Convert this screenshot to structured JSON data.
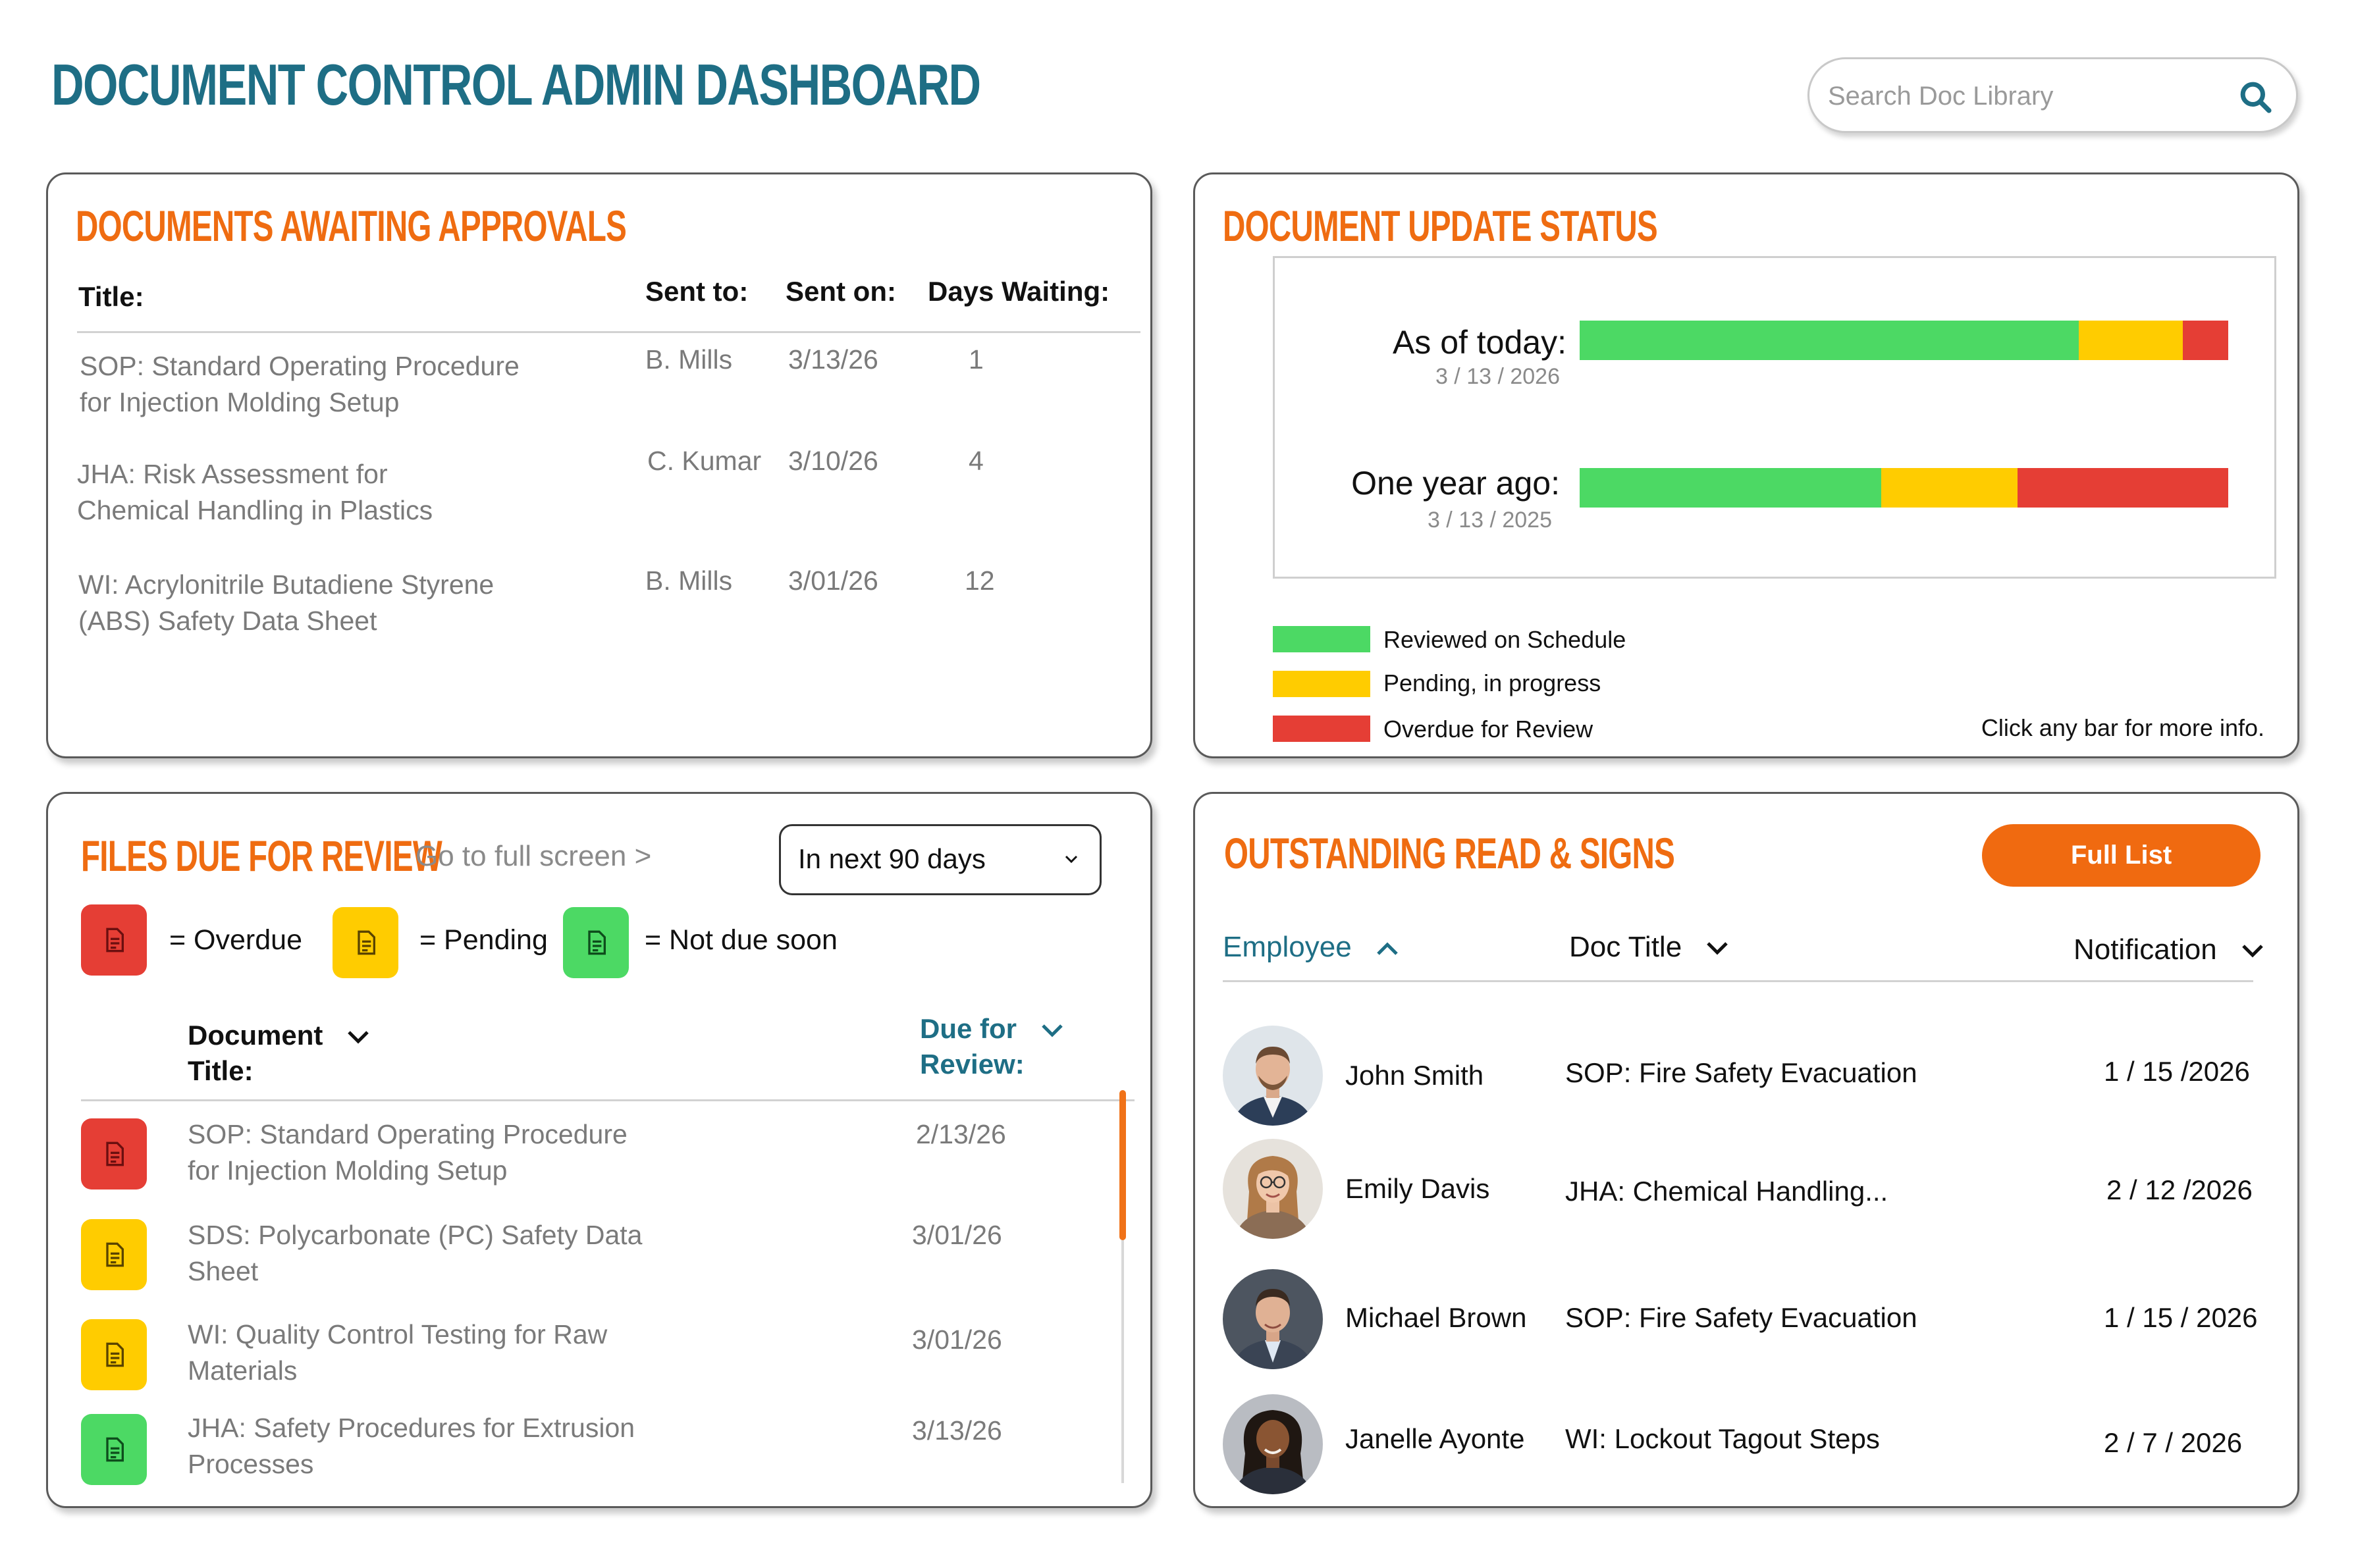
{
  "header": {
    "title": "DOCUMENT CONTROL ADMIN DASHBOARD",
    "search_placeholder": "Search Doc Library",
    "search_icon": "search-icon"
  },
  "approvals": {
    "title": "DOCUMENTS AWAITING APPROVALS",
    "columns": {
      "title": "Title:",
      "sent_to": "Sent to:",
      "sent_on": "Sent on:",
      "days": "Days Waiting:"
    },
    "rows": [
      {
        "line1": "SOP: Standard Operating Procedure",
        "line2": "for Injection Molding Setup",
        "sent_to": "B. Mills",
        "sent_on": "3/13/26",
        "days": "1"
      },
      {
        "line1": "JHA: Risk Assessment for",
        "line2": "Chemical Handling in Plastics",
        "sent_to": "C. Kumar",
        "sent_on": "3/10/26",
        "days": "4"
      },
      {
        "line1": "WI: Acrylonitrile Butadiene Styrene",
        "line2": "(ABS) Safety Data Sheet",
        "sent_to": "B. Mills",
        "sent_on": "3/01/26",
        "days": "12"
      }
    ]
  },
  "status": {
    "title": "DOCUMENT UPDATE STATUS",
    "rows": [
      {
        "label": "As of today:",
        "date": "3 / 13 / 2026",
        "reviewed": 77,
        "pending": 16,
        "overdue": 7
      },
      {
        "label": "One year ago:",
        "date": "3 / 13 / 2025",
        "reviewed": 46.5,
        "pending": 21,
        "overdue": 32.5
      }
    ],
    "legend": [
      {
        "label": "Reviewed on Schedule",
        "color": "#4cd964"
      },
      {
        "label": "Pending, in progress",
        "color": "#ffcc00"
      },
      {
        "label": "Overdue for Review",
        "color": "#e53e35"
      }
    ],
    "hint": "Click any bar for more info."
  },
  "files_due": {
    "title": "FILES DUE FOR REVIEW",
    "full_screen_link": "Go to full screen >",
    "range_select": "In next 90 days",
    "key": [
      {
        "label": "= Overdue",
        "color": "#e53e35"
      },
      {
        "label": "= Pending",
        "color": "#ffcc00"
      },
      {
        "label": "= Not due soon",
        "color": "#4cd964"
      }
    ],
    "columns": {
      "doc_title_1": "Document",
      "doc_title_2": "Title:",
      "due_1": "Due for",
      "due_2": "Review:"
    },
    "rows": [
      {
        "status": "overdue",
        "line1": "SOP: Standard Operating Procedure",
        "line2": "for Injection Molding Setup",
        "due": "2/13/26"
      },
      {
        "status": "pending",
        "line1": "SDS: Polycarbonate (PC) Safety Data",
        "line2": "Sheet",
        "due": "3/01/26"
      },
      {
        "status": "pending",
        "line1": "WI: Quality Control Testing for Raw",
        "line2": "Materials",
        "due": "3/01/26"
      },
      {
        "status": "ok",
        "line1": "JHA: Safety Procedures for Extrusion",
        "line2": "Processes",
        "due": "3/13/26"
      }
    ]
  },
  "read_signs": {
    "title": "OUTSTANDING READ & SIGNS",
    "full_list_label": "Full List",
    "columns": {
      "employee": "Employee",
      "doc_title": "Doc Title",
      "notification": "Notification"
    },
    "rows": [
      {
        "name": "John Smith",
        "doc": "SOP: Fire Safety Evacuation",
        "date": "1 / 15 /2026"
      },
      {
        "name": "Emily Davis",
        "doc": "JHA: Chemical Handling...",
        "date": "2 / 12 /2026"
      },
      {
        "name": "Michael Brown",
        "doc": "SOP: Fire Safety Evacuation",
        "date": "1 / 15 / 2026"
      },
      {
        "name": "Janelle Ayonte",
        "doc": "WI: Lockout Tagout Steps",
        "date": "2 / 7 / 2026"
      }
    ]
  },
  "colors": {
    "teal": "#1e6e85",
    "orange": "#ef6c11",
    "green": "#4cd964",
    "yellow": "#ffcc00",
    "red": "#e53e35"
  }
}
